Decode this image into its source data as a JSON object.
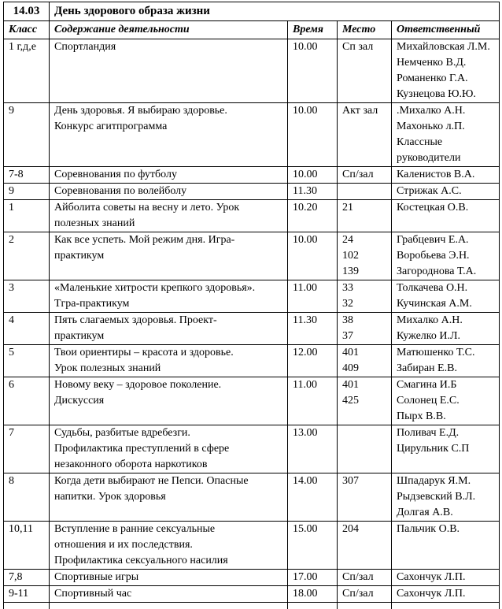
{
  "table": {
    "date": "14.03",
    "title": "День здорового образа жизни",
    "headers": [
      "Класс",
      "Содержание деятельности",
      "Время",
      "Место",
      "Ответственный"
    ],
    "rows": [
      {
        "class": "1 г,д,е",
        "content": [
          "Спортландия"
        ],
        "time": "10.00",
        "place": [
          "Сп зал"
        ],
        "responsible": [
          "Михайловская Л.М.",
          "Немченко В.Д.",
          "Романенко Г.А.",
          "Кузнецова Ю.Ю."
        ],
        "responsible_small": true
      },
      {
        "class": "9",
        "content": [
          "День здоровья. Я выбираю здоровье.",
          "Конкурс агитпрограмма"
        ],
        "time": "10.00",
        "place": [
          "Акт зал"
        ],
        "responsible": [
          ".Михалко А.Н.",
          "Махонько л.П.",
          "Классные",
          "руководители"
        ],
        "responsible_small": false
      },
      {
        "class": "7-8",
        "content": [
          "Соревнования по футболу"
        ],
        "time": "10.00",
        "place": [
          "Сп/зал"
        ],
        "responsible": [
          "Каленистов В.А."
        ],
        "responsible_small": false
      },
      {
        "class": "9",
        "content": [
          "Соревнования по волейболу"
        ],
        "time": "11.30",
        "place": [],
        "responsible": [
          "Стрижак А.С."
        ],
        "responsible_small": true
      },
      {
        "class": "1",
        "content": [
          "Айболита советы на весну и лето. Урок",
          "полезных знаний"
        ],
        "time": "10.20",
        "place": [
          "21"
        ],
        "responsible": [
          "Костецкая О.В."
        ],
        "responsible_small": false
      },
      {
        "class": "2",
        "content": [
          "Как все успеть. Мой режим дня. Игра-",
          "практикум"
        ],
        "time": "10.00",
        "place": [
          "24",
          "102",
          "139"
        ],
        "responsible": [
          "Грабцевич Е.А.",
          "Воробьева Э.Н.",
          "Загороднова Т.А."
        ],
        "responsible_small": false
      },
      {
        "class": "3",
        "content": [
          "«Маленькие хитрости крепкого здоровья».",
          "Тгра-практикум"
        ],
        "time": "11.00",
        "place": [
          "33",
          "32"
        ],
        "responsible": [
          "Толкачева О.Н.",
          "Кучинская А.М."
        ],
        "responsible_small": false
      },
      {
        "class": "4",
        "content": [
          "Пять слагаемых здоровья. Проект-",
          "практикум"
        ],
        "time": "11.30",
        "place": [
          "38",
          "37"
        ],
        "responsible": [
          "Михалко А.Н.",
          "Кужелко И.Л."
        ],
        "responsible_small": false
      },
      {
        "class": "5",
        "content": [
          "Твои ориентиры – красота и здоровье.",
          "Урок полезных знаний"
        ],
        "time": "12.00",
        "place": [
          "401",
          "409"
        ],
        "responsible": [
          "Матюшенко Т.С.",
          "Забиран Е.В."
        ],
        "responsible_small": false
      },
      {
        "class": "6",
        "content": [
          "Новому веку – здоровое поколение.",
          "Дискуссия"
        ],
        "time": "11.00",
        "place": [
          "401",
          "425"
        ],
        "responsible": [
          "Смагина И.Б",
          "Солонец Е.С.",
          "Пырх В.В."
        ],
        "responsible_small": false
      },
      {
        "class": "7",
        "content": [
          "Судьбы, разбитые вдребезги.",
          "Профилактика преступлений в сфере",
          "незаконного оборота наркотиков"
        ],
        "time": "13.00",
        "place": [],
        "responsible": [
          "Поливач Е.Д.",
          "Цирульник С.П"
        ],
        "responsible_small": false
      },
      {
        "class": "8",
        "content": [
          "Когда дети выбирают не Пепси. Опасные",
          "напитки. Урок здоровья"
        ],
        "time": "14.00",
        "place": [
          "307"
        ],
        "responsible": [
          "Шпадарук Я.М.",
          "Рыдзевский В.Л.",
          "Долгая А.В."
        ],
        "responsible_small": false
      },
      {
        "class": "10,11",
        "content": [
          "Вступление в ранние сексуальные",
          "отношения и их последствия.",
          "Профилактика сексуального насилия"
        ],
        "time": "15.00",
        "place": [
          "204"
        ],
        "responsible": [
          "Пальчик О.В."
        ],
        "responsible_small": false
      },
      {
        "class": "7,8",
        "content": [
          "Спортивные игры"
        ],
        "time": "17.00",
        "place": [
          "Сп/зал"
        ],
        "responsible": [
          "Сахончук Л.П."
        ],
        "responsible_small": false
      },
      {
        "class": "9-11",
        "content": [
          "Спортивный час"
        ],
        "time": "18.00",
        "place": [
          "Сп/зал"
        ],
        "responsible": [
          "Сахончук Л.П."
        ],
        "responsible_small": false
      }
    ]
  }
}
